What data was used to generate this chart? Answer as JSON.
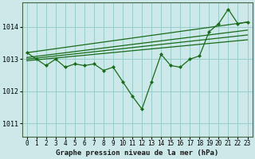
{
  "xlabel": "Graphe pression niveau de la mer (hPa)",
  "background_color": "#cce8e8",
  "grid_color": "#99cccc",
  "line_color": "#1a6b1a",
  "ylim": [
    1010.6,
    1014.75
  ],
  "yticks": [
    1011,
    1012,
    1013,
    1014
  ],
  "xticks": [
    0,
    1,
    2,
    3,
    4,
    5,
    6,
    7,
    8,
    9,
    10,
    11,
    12,
    13,
    14,
    15,
    16,
    17,
    18,
    19,
    20,
    21,
    22,
    23
  ],
  "hours": [
    0,
    1,
    2,
    3,
    4,
    5,
    6,
    7,
    8,
    9,
    10,
    11,
    12,
    13,
    14,
    15,
    16,
    17,
    18,
    19,
    20,
    21,
    22,
    23
  ],
  "pressure": [
    1013.2,
    1013.0,
    1012.8,
    1013.0,
    1012.75,
    1012.85,
    1012.8,
    1012.85,
    1012.65,
    1012.75,
    1012.3,
    1011.85,
    1011.45,
    1012.3,
    1013.15,
    1012.8,
    1012.75,
    1013.0,
    1013.1,
    1013.85,
    1014.1,
    1014.55,
    1014.1,
    1014.15
  ],
  "trend_lines": [
    {
      "x0": 0,
      "y0": 1013.2,
      "x1": 23,
      "y1": 1014.15
    },
    {
      "x0": 0,
      "y0": 1013.05,
      "x1": 23,
      "y1": 1013.9
    },
    {
      "x0": 0,
      "y0": 1013.0,
      "x1": 23,
      "y1": 1013.75
    },
    {
      "x0": 0,
      "y0": 1012.95,
      "x1": 23,
      "y1": 1013.6
    }
  ],
  "xlabel_fontsize": 6.5,
  "tick_fontsize": 5.5,
  "ytick_fontsize": 6.0
}
